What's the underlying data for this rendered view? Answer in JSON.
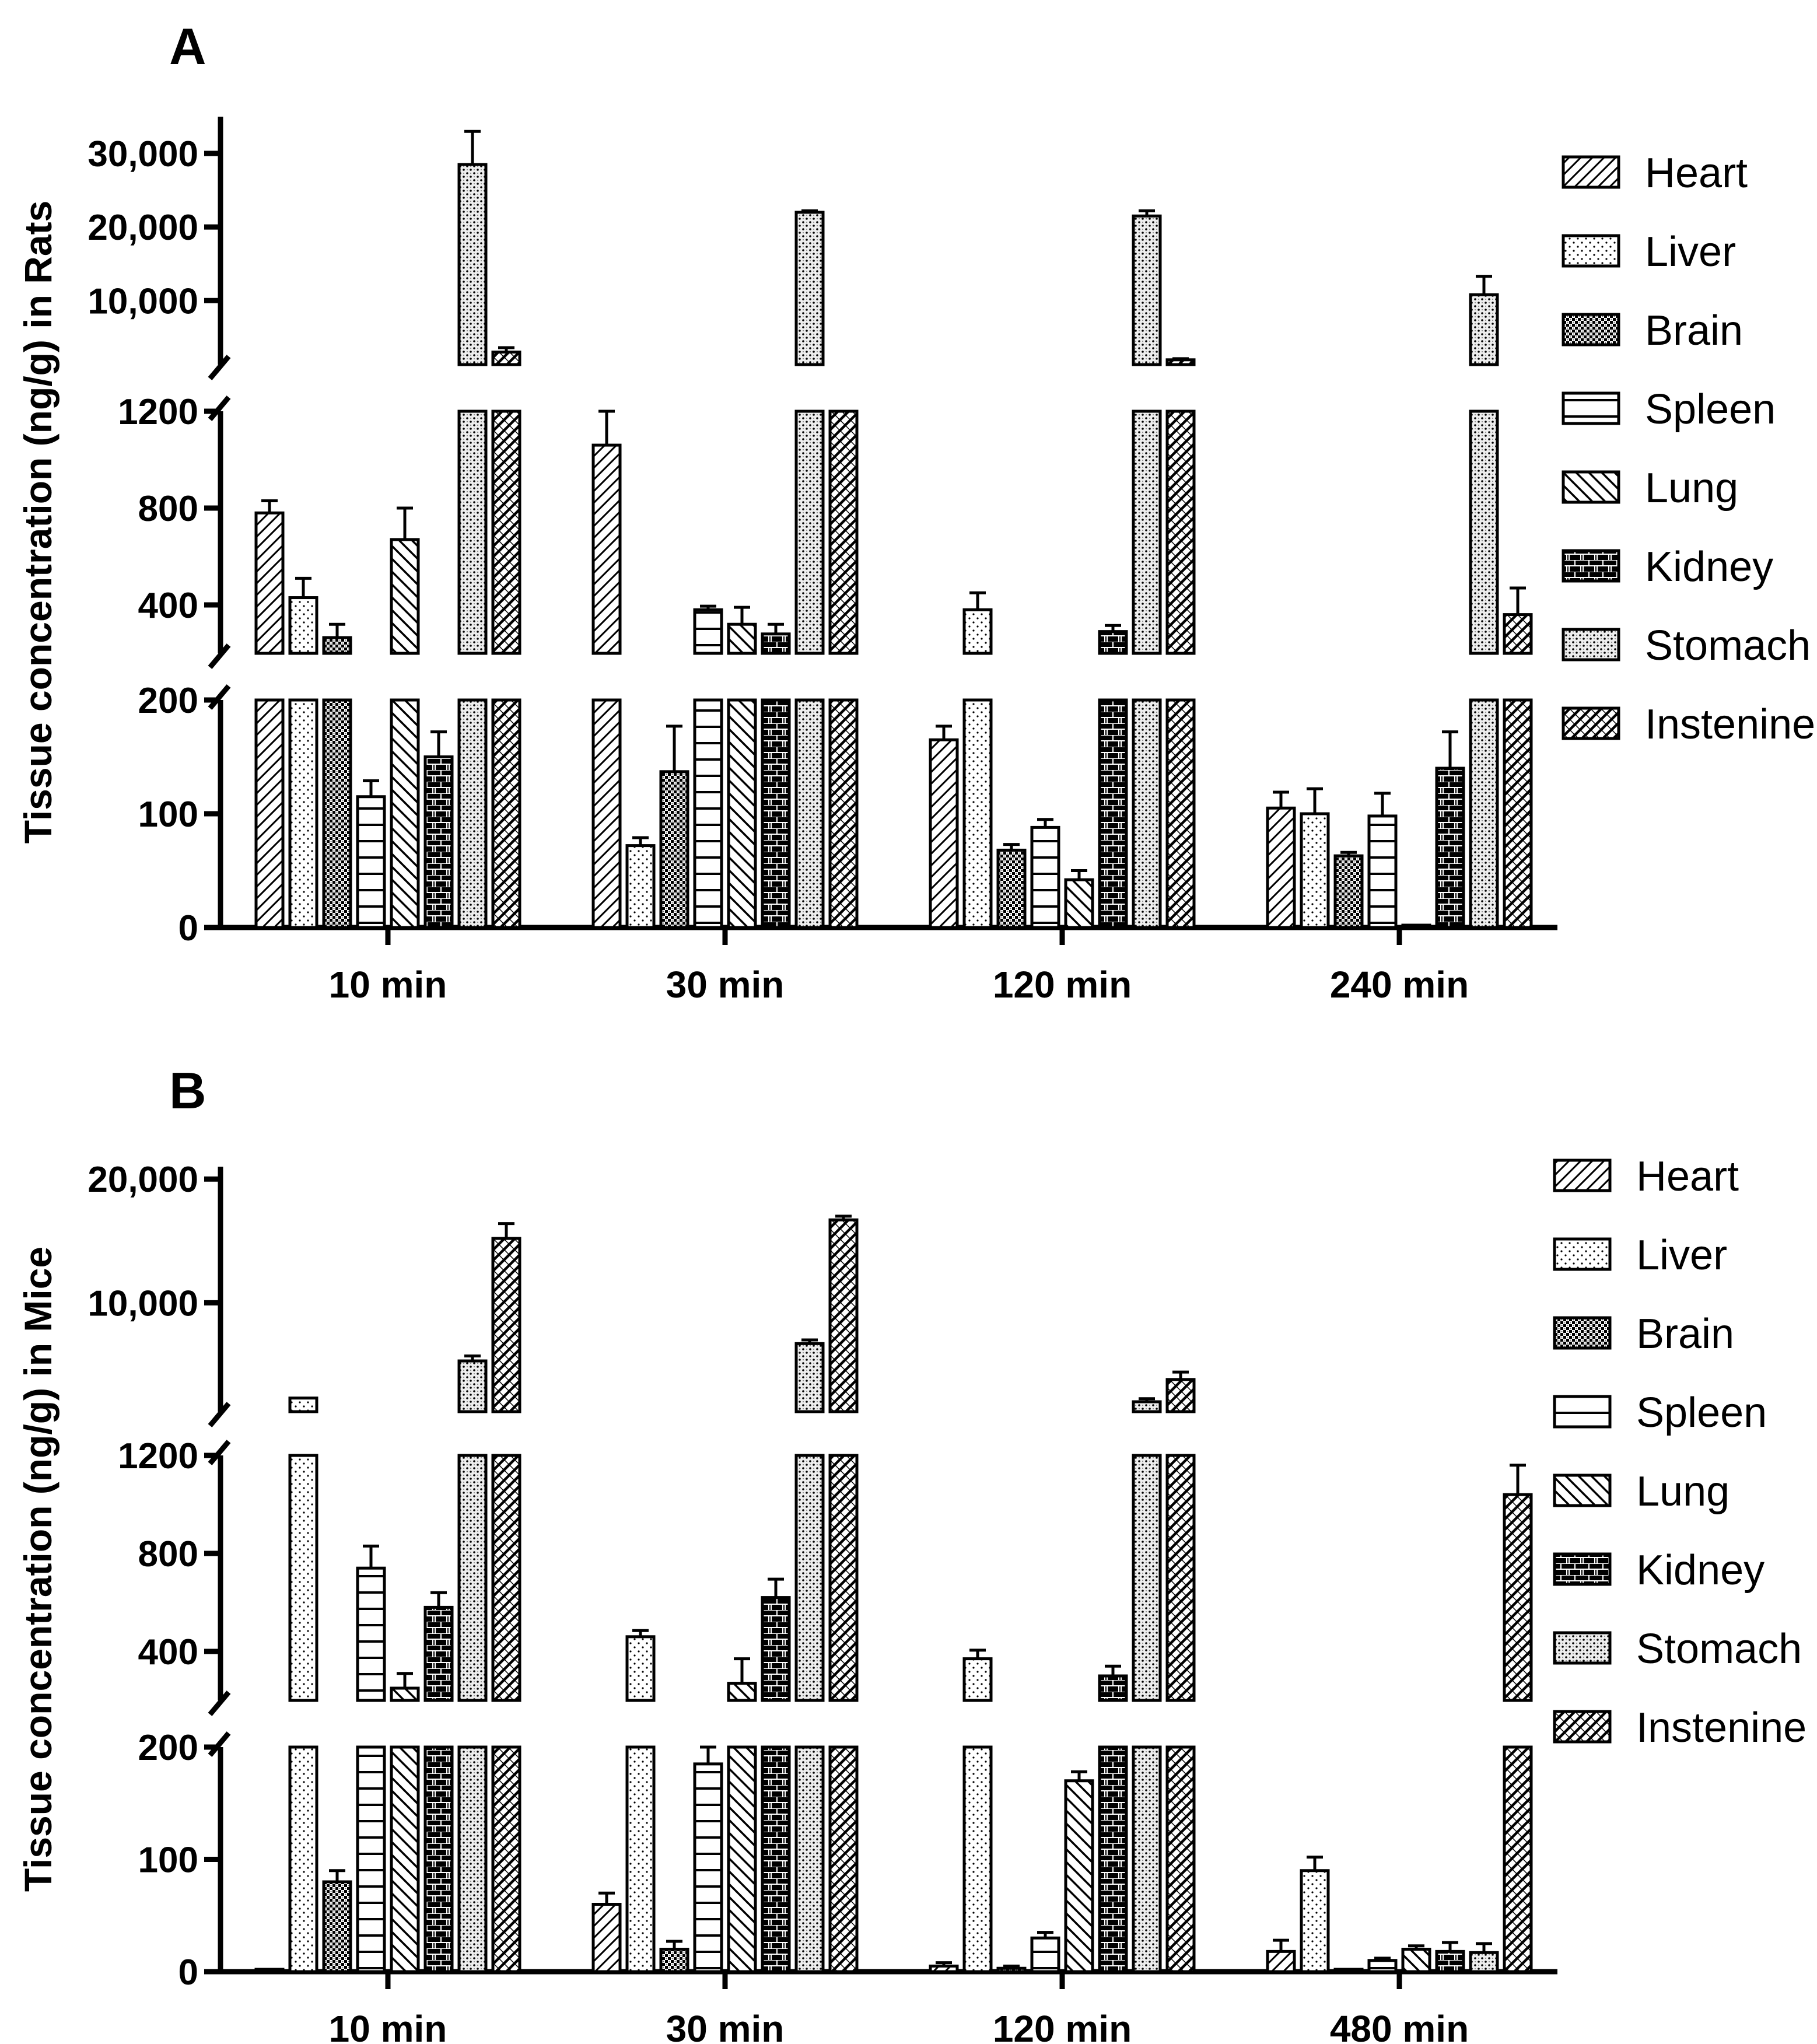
{
  "legend": [
    "Heart",
    "Liver",
    "Brain",
    "Spleen",
    "Lung",
    "Kidney",
    "Stomach",
    "Instenine"
  ],
  "chart_data": [
    {
      "type": "bar",
      "panel_label": "A",
      "ylabel": "Tissue concentration (ng/g) in Rats",
      "categories": [
        "10 min",
        "30 min",
        "120 min",
        "240 min"
      ],
      "y_segments": [
        {
          "range": [
            0,
            200
          ],
          "ticks": [
            "0",
            "100",
            "200"
          ],
          "tick_values": [
            0,
            100,
            200
          ]
        },
        {
          "range": [
            200,
            1200
          ],
          "ticks": [
            "400",
            "800",
            "1200"
          ],
          "tick_values": [
            400,
            800,
            1200
          ]
        },
        {
          "range": [
            1300,
            35000
          ],
          "ticks": [
            "10,000",
            "20,000",
            "30,000"
          ],
          "tick_values": [
            10000,
            20000,
            30000
          ]
        }
      ],
      "series": [
        {
          "name": "Heart",
          "values": [
            780,
            1060,
            165,
            105
          ],
          "errors": [
            50,
            140,
            12,
            14
          ]
        },
        {
          "name": "Liver",
          "values": [
            430,
            72,
            380,
            100
          ],
          "errors": [
            80,
            7,
            70,
            22
          ]
        },
        {
          "name": "Brain",
          "values": [
            265,
            137,
            68,
            63
          ],
          "errors": [
            55,
            40,
            5,
            3
          ]
        },
        {
          "name": "Spleen",
          "values": [
            115,
            380,
            88,
            98
          ],
          "errors": [
            14,
            15,
            7,
            20
          ]
        },
        {
          "name": "Lung",
          "values": [
            670,
            320,
            42,
            0
          ],
          "errors": [
            130,
            70,
            8,
            0
          ]
        },
        {
          "name": "Kidney",
          "values": [
            150,
            280,
            290,
            140
          ],
          "errors": [
            22,
            40,
            25,
            32
          ]
        },
        {
          "name": "Stomach",
          "values": [
            28500,
            22000,
            21500,
            10800
          ],
          "errors": [
            4500,
            200,
            700,
            2500
          ]
        },
        {
          "name": "Instenine",
          "values": [
            3000,
            1200,
            1950,
            360
          ],
          "errors": [
            600,
            0,
            150,
            110
          ]
        }
      ]
    },
    {
      "type": "bar",
      "panel_label": "B",
      "ylabel": "Tissue concentration (ng/g) in Mice",
      "categories": [
        "10 min",
        "30 min",
        "120 min",
        "480 min"
      ],
      "y_segments": [
        {
          "range": [
            0,
            200
          ],
          "ticks": [
            "0",
            "100",
            "200"
          ],
          "tick_values": [
            0,
            100,
            200
          ]
        },
        {
          "range": [
            200,
            1200
          ],
          "ticks": [
            "400",
            "800",
            "1200"
          ],
          "tick_values": [
            400,
            800,
            1200
          ]
        },
        {
          "range": [
            1200,
            21000
          ],
          "ticks": [
            "10,000",
            "20,000"
          ],
          "tick_values": [
            10000,
            20000
          ]
        }
      ],
      "series": [
        {
          "name": "Heart",
          "values": [
            0,
            60,
            5,
            18
          ],
          "errors": [
            0,
            10,
            3,
            10
          ]
        },
        {
          "name": "Liver",
          "values": [
            2300,
            460,
            370,
            90
          ],
          "errors": [
            0,
            25,
            35,
            12
          ]
        },
        {
          "name": "Brain",
          "values": [
            80,
            20,
            3,
            0
          ],
          "errors": [
            10,
            7,
            2,
            0
          ]
        },
        {
          "name": "Spleen",
          "values": [
            740,
            185,
            30,
            10
          ],
          "errors": [
            90,
            15,
            5,
            2
          ]
        },
        {
          "name": "Lung",
          "values": [
            250,
            270,
            170,
            20
          ],
          "errors": [
            60,
            100,
            8,
            3
          ]
        },
        {
          "name": "Kidney",
          "values": [
            580,
            620,
            300,
            18
          ],
          "errors": [
            60,
            75,
            40,
            8
          ]
        },
        {
          "name": "Stomach",
          "values": [
            5300,
            6700,
            2000,
            17
          ],
          "errors": [
            400,
            300,
            250,
            8
          ]
        },
        {
          "name": "Instenine",
          "values": [
            15200,
            16700,
            3800,
            1040
          ],
          "errors": [
            1200,
            300,
            600,
            120
          ]
        }
      ]
    }
  ]
}
